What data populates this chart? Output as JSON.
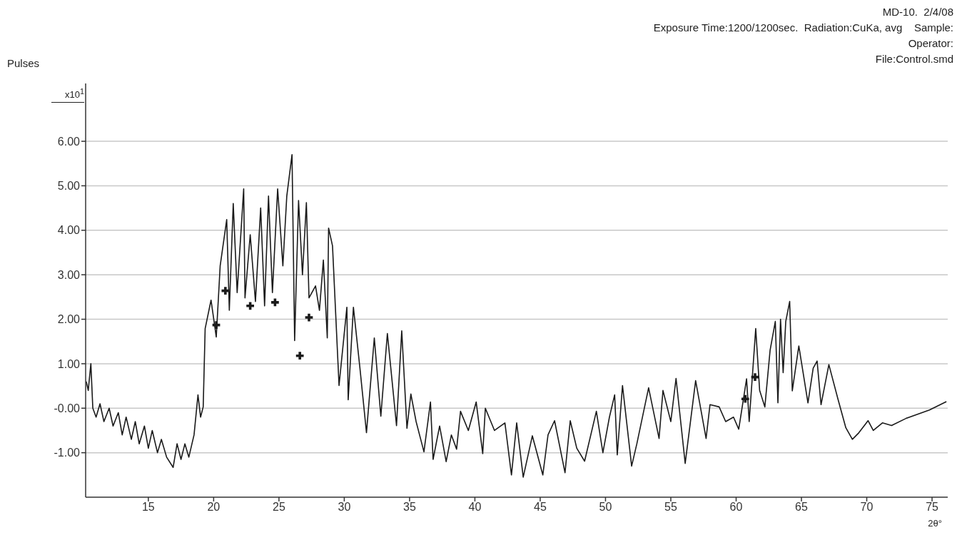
{
  "chart_data": {
    "type": "line",
    "ylabel": "Pulses",
    "xlabel": "2θ°",
    "annotations": [
      "MD-10.  2/4/08",
      "Exposure Time:1200/1200sec.  Radiation:CuKa, avg    Sample:",
      "Operator:",
      "File:Control.smd",
      "x10$^{1}$"
    ],
    "xlim": [
      10.2,
      76.2
    ],
    "xticks": [
      15,
      20,
      25,
      30,
      35,
      40,
      45,
      50,
      55,
      60,
      65,
      70,
      75
    ],
    "ylim": [
      -2.0,
      7.3
    ],
    "yticks": [
      {
        "value": -1,
        "label": "-1.00"
      },
      {
        "value": 0,
        "label": "-0.00"
      },
      {
        "value": 1,
        "label": "1.00"
      },
      {
        "value": 2,
        "label": "2.00"
      },
      {
        "value": 3,
        "label": "3.00"
      },
      {
        "value": 4,
        "label": "4.00"
      },
      {
        "value": 5,
        "label": "5.00"
      },
      {
        "value": 6,
        "label": "6.00"
      }
    ],
    "grid": "y",
    "series": [
      {
        "marker": "none",
        "color": "#1a1a1a",
        "x": [
          10.25,
          10.4,
          10.6,
          10.75,
          11.0,
          11.3,
          11.6,
          12.0,
          12.3,
          12.7,
          13.0,
          13.3,
          13.7,
          14.0,
          14.3,
          14.7,
          15.0,
          15.3,
          15.7,
          16.0,
          16.4,
          16.9,
          17.2,
          17.5,
          17.8,
          18.1,
          18.5,
          18.8,
          19.0,
          19.2,
          19.35,
          19.8,
          20.2,
          20.5,
          21.0,
          21.2,
          21.5,
          21.8,
          22.3,
          22.4,
          22.8,
          23.2,
          23.6,
          23.9,
          24.2,
          24.5,
          24.9,
          25.3,
          25.6,
          26.0,
          26.2,
          26.5,
          26.8,
          27.1,
          27.3,
          27.8,
          28.1,
          28.4,
          28.7,
          28.8,
          29.1,
          29.6,
          30.2,
          30.3,
          30.7,
          31.2,
          31.7,
          32.3,
          32.8,
          33.3,
          34.0,
          34.4,
          34.8,
          35.1,
          35.5,
          36.1,
          36.6,
          36.8,
          37.3,
          37.8,
          38.2,
          38.6,
          38.9,
          39.5,
          40.1,
          40.6,
          40.8,
          41.5,
          42.3,
          42.8,
          43.2,
          43.7,
          44.4,
          45.2,
          45.6,
          46.1,
          46.9,
          47.3,
          47.8,
          48.4,
          49.3,
          49.8,
          50.3,
          50.7,
          50.9,
          51.3,
          52.0,
          52.4,
          53.3,
          54.1,
          54.4,
          55.0,
          55.4,
          56.1,
          56.9,
          57.7,
          58.0,
          58.7,
          59.2,
          59.8,
          60.2,
          60.8,
          61.0,
          61.5,
          61.8,
          62.2,
          62.6,
          63.0,
          63.2,
          63.4,
          63.6,
          63.8,
          64.1,
          64.3,
          64.8,
          65.5,
          65.9,
          66.2,
          66.5,
          67.1,
          67.8,
          68.4,
          68.9,
          69.4,
          70.1,
          70.5,
          71.2,
          71.9,
          73.0,
          74.8,
          76.1
        ],
        "values": [
          0.6,
          0.4,
          1.0,
          0.0,
          -0.2,
          0.1,
          -0.3,
          0.0,
          -0.4,
          -0.1,
          -0.6,
          -0.2,
          -0.7,
          -0.3,
          -0.8,
          -0.4,
          -0.9,
          -0.5,
          -1.0,
          -0.7,
          -1.1,
          -1.33,
          -0.8,
          -1.15,
          -0.8,
          -1.1,
          -0.6,
          0.3,
          -0.2,
          0.03,
          1.79,
          2.43,
          1.6,
          3.2,
          4.24,
          2.2,
          4.6,
          2.6,
          4.93,
          2.48,
          3.9,
          2.4,
          4.5,
          2.3,
          4.77,
          2.6,
          4.93,
          3.2,
          4.77,
          5.7,
          1.52,
          4.67,
          3.0,
          4.62,
          2.48,
          2.75,
          2.2,
          3.33,
          1.58,
          4.05,
          3.65,
          0.51,
          2.27,
          0.19,
          2.27,
          0.9,
          -0.55,
          1.58,
          -0.18,
          1.68,
          -0.39,
          1.74,
          -0.45,
          0.32,
          -0.3,
          -0.98,
          0.14,
          -1.15,
          -0.4,
          -1.2,
          -0.6,
          -0.92,
          -0.07,
          -0.5,
          0.14,
          -1.02,
          0.0,
          -0.5,
          -0.33,
          -1.5,
          -0.33,
          -1.55,
          -0.62,
          -1.5,
          -0.6,
          -0.28,
          -1.45,
          -0.28,
          -0.9,
          -1.19,
          -0.07,
          -1.0,
          -0.2,
          0.3,
          -1.05,
          0.51,
          -1.3,
          -0.8,
          0.46,
          -0.68,
          0.4,
          -0.3,
          0.67,
          -1.24,
          0.62,
          -0.68,
          0.08,
          0.03,
          -0.3,
          -0.2,
          -0.47,
          0.66,
          -0.3,
          1.79,
          0.4,
          0.03,
          1.3,
          1.95,
          0.12,
          2.0,
          0.8,
          1.95,
          2.4,
          0.39,
          1.4,
          0.12,
          0.9,
          1.06,
          0.08,
          0.98,
          0.2,
          -0.44,
          -0.7,
          -0.55,
          -0.28,
          -0.5,
          -0.33,
          -0.39,
          -0.23,
          -0.04,
          0.15
        ]
      },
      {
        "type": "scatter",
        "marker": "cross",
        "color": "#1a1a1a",
        "x": [
          20.2,
          20.9,
          22.8,
          24.7,
          26.6,
          27.3,
          60.7,
          61.45
        ],
        "values": [
          1.87,
          2.64,
          2.3,
          2.38,
          1.18,
          2.04,
          0.21,
          0.7
        ]
      }
    ]
  }
}
